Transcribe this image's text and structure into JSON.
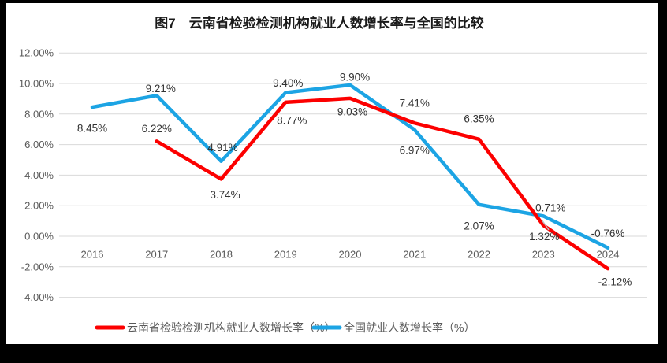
{
  "window": {
    "frame_color": "#000000",
    "chart_background": "#FFFFFF"
  },
  "chart_data": {
    "type": "line",
    "title": "图7　云南省检验检测机构就业人数增长率与全国的比较",
    "categories": [
      "2016",
      "2017",
      "2018",
      "2019",
      "2020",
      "2021",
      "2022",
      "2023",
      "2024"
    ],
    "series": [
      {
        "name": "云南省检验检测机构就业人数增长率（%）",
        "color": "#FC0000",
        "values": [
          null,
          6.22,
          3.74,
          8.77,
          9.03,
          7.41,
          6.35,
          0.71,
          -2.12
        ],
        "labels": [
          null,
          "6.22%",
          "3.74%",
          "8.77%",
          "9.03%",
          "7.41%",
          "6.35%",
          "0.71%",
          "-2.12%"
        ]
      },
      {
        "name": "全国就业人数增长率（%）",
        "color": "#1CA4E4",
        "values": [
          8.45,
          9.21,
          4.91,
          9.4,
          9.9,
          6.97,
          2.07,
          1.32,
          -0.76
        ],
        "labels": [
          "8.45%",
          "9.21%",
          "4.91%",
          "9.40%",
          "9.90%",
          "6.97%",
          "2.07%",
          "1.32%",
          "-0.76%"
        ]
      }
    ],
    "ylim": [
      -4,
      12
    ],
    "ytick_step": 2,
    "ytick_labels": [
      "12.00%",
      "10.00%",
      "8.00%",
      "6.00%",
      "4.00%",
      "2.00%",
      "0.00%",
      "-2.00%",
      "-4.00%"
    ],
    "grid": "horizontal",
    "gridline_color": "#D9D9D9",
    "axis_label_color": "#595959",
    "data_label_color": "#333333",
    "legend_position": "bottom"
  }
}
